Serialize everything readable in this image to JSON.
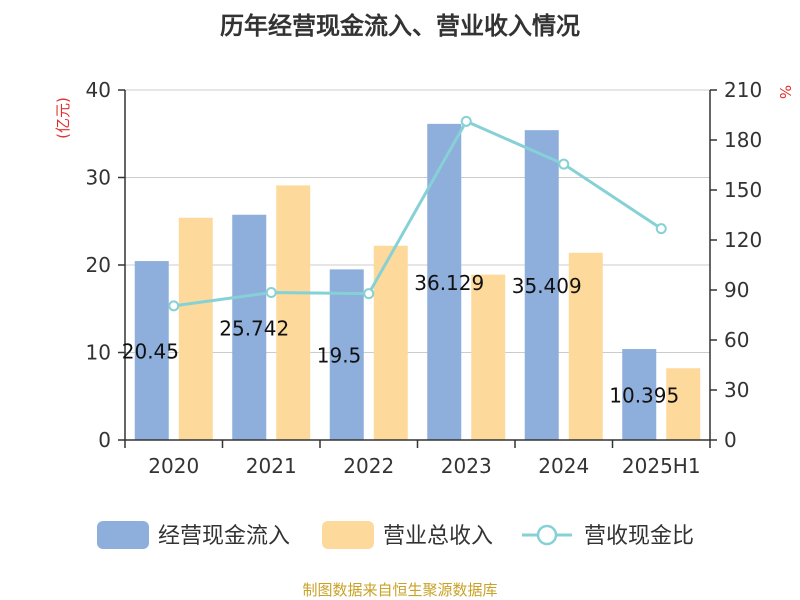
{
  "chart_data": {
    "type": "bar",
    "title": "历年经营现金流入、营业收入情况",
    "categories": [
      "2020",
      "2021",
      "2022",
      "2023",
      "2024",
      "2025H1"
    ],
    "y_left": {
      "unit": "(亿元)",
      "ylim": [
        0,
        40
      ],
      "ticks": [
        0,
        10,
        20,
        30,
        40
      ]
    },
    "y_right": {
      "unit": "%",
      "ylim": [
        0,
        210
      ],
      "ticks": [
        0,
        30,
        60,
        90,
        120,
        150,
        180,
        210
      ]
    },
    "series": [
      {
        "name": "经营现金流入",
        "type": "bar",
        "axis": "left",
        "color": "#8eaedb",
        "values": [
          20.45,
          25.742,
          19.5,
          36.129,
          35.409,
          10.395
        ],
        "labels": [
          "20.45",
          "25.742",
          "19.5",
          "36.129",
          "35.409",
          "10.395"
        ]
      },
      {
        "name": "营业总收入",
        "type": "bar",
        "axis": "left",
        "color": "#fdd99b",
        "values": [
          25.4,
          29.1,
          22.2,
          18.9,
          21.4,
          8.2
        ]
      },
      {
        "name": "营收现金比",
        "type": "line",
        "axis": "right",
        "color": "#86d1d6",
        "values": [
          80.5,
          88.5,
          87.8,
          191.2,
          165.5,
          126.8
        ]
      }
    ],
    "grid": true,
    "legend": "bottom"
  },
  "footer": {
    "source": "制图数据来自恒生聚源数据库"
  }
}
